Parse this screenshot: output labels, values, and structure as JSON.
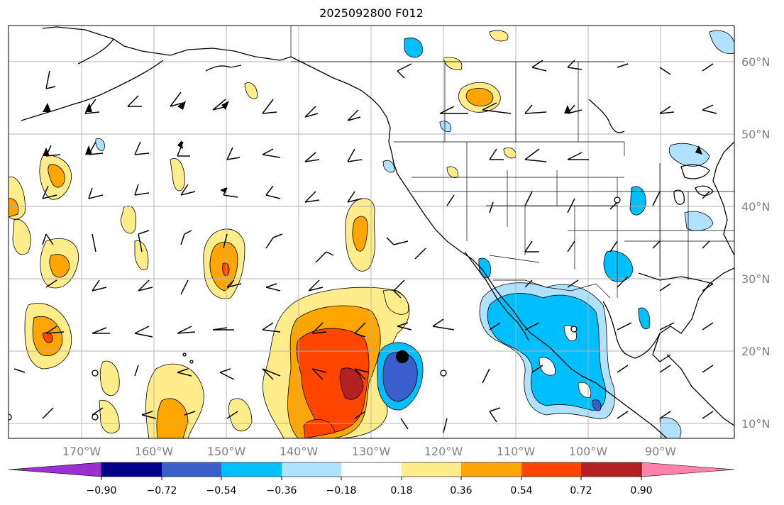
{
  "title": "2025092800 F012",
  "map": {
    "lon_range": [
      -180,
      -80
    ],
    "lat_range": [
      8,
      65
    ],
    "lon_labels": [
      "170°W",
      "160°W",
      "150°W",
      "140°W",
      "130°W",
      "120°W",
      "110°W",
      "100°W",
      "90°W"
    ],
    "lat_labels": [
      "60°N",
      "50°N",
      "40°N",
      "30°N",
      "20°N",
      "10°N"
    ],
    "gridlines": true,
    "features": [
      "coastlines",
      "country borders",
      "US state borders",
      "Canadian province borders",
      "wind barbs",
      "filled contours"
    ]
  },
  "colorbar": {
    "ticks": [
      "−0.90",
      "−0.72",
      "−0.54",
      "−0.36",
      "−0.18",
      "0.18",
      "0.36",
      "0.54",
      "0.72",
      "0.90"
    ],
    "colors": [
      "#9b30d0",
      "#00008b",
      "#3a5fcd",
      "#00bfff",
      "#b0e2ff",
      "#ffffff",
      "#ffec8b",
      "#ffa500",
      "#ff4500",
      "#b22222",
      "#ff82ab"
    ],
    "extend": "both"
  },
  "marker": {
    "name": "tropical cyclone center",
    "lon": -126,
    "lat": 19
  }
}
